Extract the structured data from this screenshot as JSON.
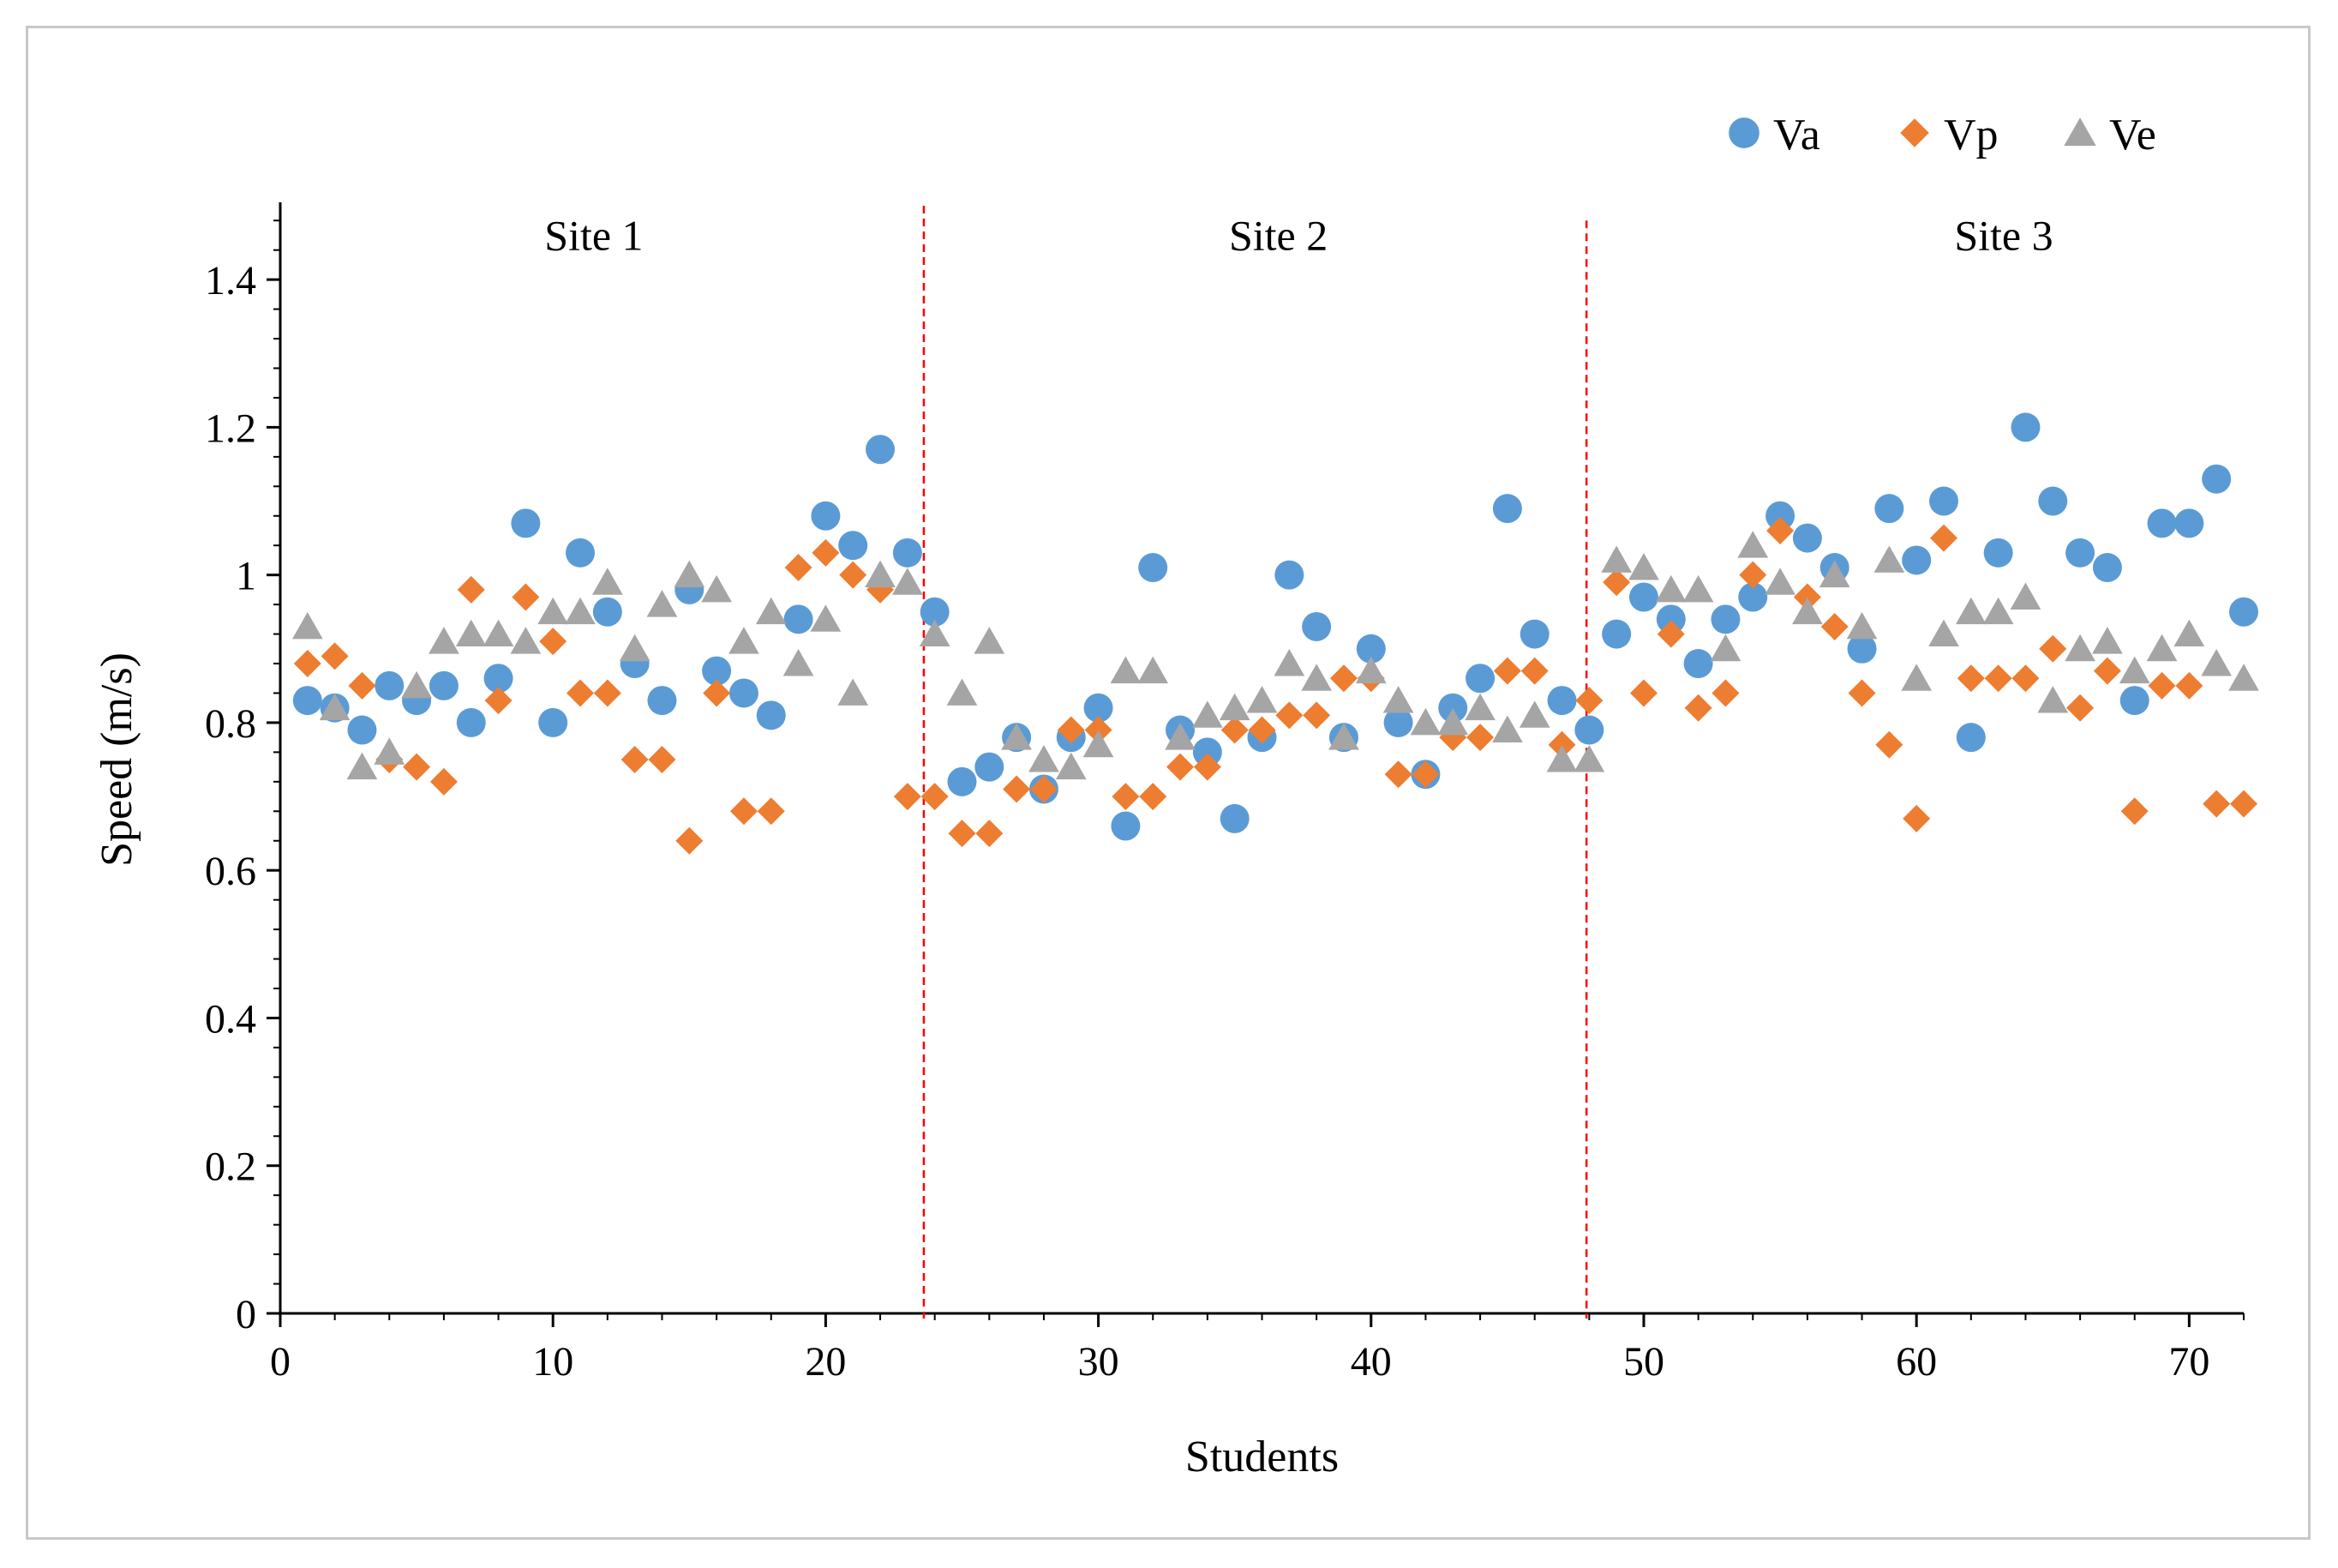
{
  "chart_data": {
    "type": "scatter",
    "title": "",
    "xlabel": "Students",
    "ylabel": "Speed (m/s)",
    "xlim": [
      0,
      72
    ],
    "ylim": [
      0,
      1.5
    ],
    "xticks": [
      0,
      10,
      20,
      30,
      40,
      50,
      60,
      70
    ],
    "yticks": [
      0,
      0.2,
      0.4,
      0.6,
      0.8,
      1,
      1.2,
      1.4
    ],
    "ytick_labels": [
      "0",
      "0.2",
      "0.4",
      "0.6",
      "0.8",
      "1",
      "1.2",
      "1.4"
    ],
    "legend_position": "top-right",
    "grid": false,
    "annotations": [
      {
        "text": "Site 1",
        "x": 11.5,
        "y": 1.46
      },
      {
        "text": "Site 2",
        "x": 36.6,
        "y": 1.46
      },
      {
        "text": "Site 3",
        "x": 63.2,
        "y": 1.46
      }
    ],
    "separators": [
      {
        "x": 23.6,
        "y_top": 1.5,
        "color": "#ff0000"
      },
      {
        "x": 47.9,
        "y_top": 1.48,
        "color": "#ff0000"
      }
    ],
    "series": [
      {
        "name": "Va",
        "marker": "circle",
        "color": "#5b9bd5",
        "x": [
          1,
          2,
          3,
          4,
          5,
          6,
          7,
          8,
          9,
          10,
          11,
          12,
          13,
          14,
          15,
          16,
          17,
          18,
          19,
          20,
          21,
          22,
          23,
          24,
          25,
          26,
          27,
          28,
          29,
          30,
          31,
          32,
          33,
          34,
          35,
          36,
          37,
          38,
          39,
          40,
          41,
          42,
          43,
          44,
          45,
          46,
          47,
          48,
          49,
          50,
          51,
          52,
          53,
          54,
          55,
          56,
          57,
          58,
          59,
          60,
          61,
          62,
          63,
          64,
          65,
          66,
          67,
          68,
          69,
          70,
          71,
          72
        ],
        "y": [
          0.83,
          0.82,
          0.79,
          0.85,
          0.83,
          0.85,
          0.8,
          0.86,
          1.07,
          0.8,
          1.03,
          0.95,
          0.88,
          0.83,
          0.98,
          0.87,
          0.84,
          0.81,
          0.94,
          1.08,
          1.04,
          1.17,
          1.03,
          0.95,
          0.72,
          0.74,
          0.78,
          0.71,
          0.78,
          0.82,
          0.66,
          1.01,
          0.79,
          0.76,
          0.67,
          0.78,
          1.0,
          0.93,
          0.78,
          0.9,
          0.8,
          0.73,
          0.82,
          0.86,
          1.09,
          0.92,
          0.83,
          0.79,
          0.92,
          0.97,
          0.94,
          0.88,
          0.94,
          0.97,
          1.08,
          1.05,
          1.01,
          0.9,
          1.09,
          1.02,
          1.1,
          0.78,
          1.03,
          1.2,
          1.1,
          1.03,
          1.01,
          0.83,
          1.07,
          1.07,
          1.13,
          0.95
        ]
      },
      {
        "name": "Vp",
        "marker": "diamond",
        "color": "#ed7d31",
        "x": [
          1,
          2,
          3,
          4,
          5,
          6,
          7,
          8,
          9,
          10,
          11,
          12,
          13,
          14,
          15,
          16,
          17,
          18,
          19,
          20,
          21,
          22,
          23,
          24,
          25,
          26,
          27,
          28,
          29,
          30,
          31,
          32,
          33,
          34,
          35,
          36,
          37,
          38,
          39,
          40,
          41,
          42,
          43,
          44,
          45,
          46,
          47,
          48,
          49,
          50,
          51,
          52,
          53,
          54,
          55,
          56,
          57,
          58,
          59,
          60,
          61,
          62,
          63,
          64,
          65,
          66,
          67,
          68,
          69,
          70,
          71,
          72
        ],
        "y": [
          0.88,
          0.89,
          0.85,
          0.75,
          0.74,
          0.72,
          0.98,
          0.83,
          0.97,
          0.91,
          0.84,
          0.84,
          0.75,
          0.75,
          0.64,
          0.84,
          0.68,
          0.68,
          1.01,
          1.03,
          1.0,
          0.98,
          0.7,
          0.7,
          0.65,
          0.65,
          0.71,
          0.71,
          0.79,
          0.79,
          0.7,
          0.7,
          0.74,
          0.74,
          0.79,
          0.79,
          0.81,
          0.81,
          0.86,
          0.86,
          0.73,
          0.73,
          0.78,
          0.78,
          0.87,
          0.87,
          0.77,
          0.83,
          0.99,
          0.84,
          0.92,
          0.82,
          0.84,
          1.0,
          1.06,
          0.97,
          0.93,
          0.84,
          0.77,
          0.67,
          1.05,
          0.86,
          0.86,
          0.86,
          0.9,
          0.82,
          0.87,
          0.68,
          0.85,
          0.85,
          0.69,
          0.69
        ]
      },
      {
        "name": "Ve",
        "marker": "triangle",
        "color": "#a5a5a5",
        "x": [
          1,
          2,
          3,
          4,
          5,
          6,
          7,
          8,
          9,
          10,
          11,
          12,
          13,
          14,
          15,
          16,
          17,
          18,
          19,
          20,
          21,
          22,
          23,
          24,
          25,
          26,
          27,
          28,
          29,
          30,
          31,
          32,
          33,
          34,
          35,
          36,
          37,
          38,
          39,
          40,
          41,
          42,
          43,
          44,
          45,
          46,
          47,
          48,
          49,
          50,
          51,
          52,
          53,
          54,
          55,
          56,
          57,
          58,
          59,
          60,
          61,
          62,
          63,
          64,
          65,
          66,
          67,
          68,
          69,
          70,
          71,
          72
        ],
        "y": [
          0.93,
          0.82,
          0.74,
          0.76,
          0.85,
          0.91,
          0.92,
          0.92,
          0.91,
          0.95,
          0.95,
          0.99,
          0.9,
          0.96,
          1.0,
          0.98,
          0.91,
          0.95,
          0.88,
          0.94,
          0.84,
          1.0,
          0.99,
          0.92,
          0.84,
          0.91,
          0.78,
          0.75,
          0.74,
          0.77,
          0.87,
          0.87,
          0.78,
          0.81,
          0.82,
          0.83,
          0.88,
          0.86,
          0.78,
          0.87,
          0.83,
          0.8,
          0.8,
          0.82,
          0.79,
          0.81,
          0.75,
          0.75,
          1.02,
          1.01,
          0.98,
          0.98,
          0.9,
          1.04,
          0.99,
          0.95,
          1.0,
          0.93,
          1.02,
          0.86,
          0.92,
          0.95,
          0.95,
          0.97,
          0.83,
          0.9,
          0.91,
          0.87,
          0.9,
          0.92,
          0.88,
          0.86
        ]
      }
    ]
  }
}
